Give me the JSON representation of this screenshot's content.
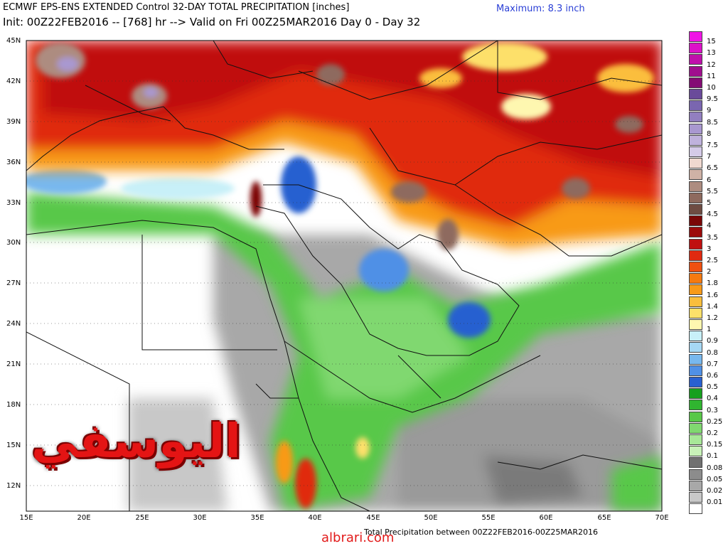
{
  "header": {
    "title_line1": "ECMWF EPS-ENS EXTENDED Control 32-DAY TOTAL PRECIPITATION [inches]",
    "title_line2": "Init: 00Z22FEB2016 -- [768] hr --> Valid on Fri 00Z25MAR2016  Day 0 - Day 32",
    "maximum": "Maximum: 8.3 inch"
  },
  "axes": {
    "lat_labels": [
      "45N",
      "42N",
      "39N",
      "36N",
      "33N",
      "30N",
      "27N",
      "24N",
      "21N",
      "18N",
      "15N",
      "12N"
    ],
    "lon_labels": [
      "15E",
      "20E",
      "25E",
      "30E",
      "35E",
      "40E",
      "45E",
      "50E",
      "55E",
      "60E",
      "65E",
      "70E"
    ]
  },
  "colorbar": {
    "labels": [
      "15",
      "13",
      "12",
      "11",
      "10",
      "9.5",
      "9",
      "8.5",
      "8",
      "7.5",
      "7",
      "6.5",
      "6",
      "5.5",
      "5",
      "4.5",
      "4",
      "3.5",
      "3",
      "2.5",
      "2",
      "1.8",
      "1.6",
      "1.4",
      "1.2",
      "1",
      "0.9",
      "0.8",
      "0.7",
      "0.6",
      "0.5",
      "0.4",
      "0.3",
      "0.25",
      "0.2",
      "0.15",
      "0.1",
      "0.08",
      "0.05",
      "0.02",
      "0.01"
    ],
    "colors": [
      "#f014e6",
      "#dc12c8",
      "#c010ab",
      "#a00e8e",
      "#840c74",
      "#6a4a9a",
      "#7a66b0",
      "#927fc0",
      "#a998d0",
      "#bfb2dc",
      "#d5cbe8",
      "#f0d9d0",
      "#cfb2a6",
      "#ad8c80",
      "#8e6a5e",
      "#6e4c42",
      "#7a0606",
      "#9c0a0a",
      "#c01010",
      "#e02a10",
      "#f05010",
      "#f57a10",
      "#f89a18",
      "#fbbe3c",
      "#fde06a",
      "#fef7b0",
      "#c8f0f8",
      "#a6d8f4",
      "#78b8ee",
      "#5090e6",
      "#2860d0",
      "#16a01e",
      "#30b530",
      "#58c848",
      "#80d870",
      "#a8e898",
      "#c8f2b8",
      "#707070",
      "#8c8c8c",
      "#a8a8a8",
      "#c8c8c8",
      "#ffffff"
    ]
  },
  "footer": "Total Precipitation between 00Z22FEB2016-00Z25MAR2016",
  "credit": "albrari.com",
  "watermark": "اليوسفي"
}
